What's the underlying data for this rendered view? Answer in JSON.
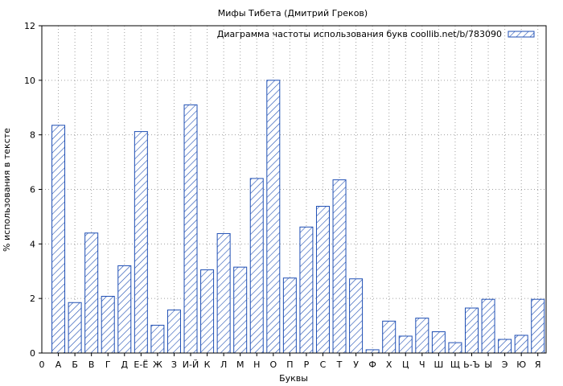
{
  "chart_data": {
    "type": "bar",
    "title": "Мифы Тибета (Дмитрий Греков)",
    "xlabel": "Буквы",
    "ylabel": "% использования в тексте",
    "ylim": [
      0,
      12
    ],
    "yticks": [
      0,
      2,
      4,
      6,
      8,
      10,
      12
    ],
    "grid": true,
    "legend_position": "top-right",
    "x_start_label": "0",
    "categories": [
      "А",
      "Б",
      "В",
      "Г",
      "Д",
      "Е-Ё",
      "Ж",
      "З",
      "И-Й",
      "К",
      "Л",
      "М",
      "Н",
      "О",
      "П",
      "Р",
      "С",
      "Т",
      "У",
      "Ф",
      "Х",
      "Ц",
      "Ч",
      "Ш",
      "Щ",
      "Ь-Ъ",
      "Ы",
      "Э",
      "Ю",
      "Я"
    ],
    "series": [
      {
        "name": "Диаграмма частоты использования букв coollib.net/b/783090",
        "color": "#1f4fb4",
        "values": [
          8.35,
          1.85,
          4.4,
          2.08,
          3.2,
          8.12,
          1.02,
          1.58,
          9.1,
          3.05,
          4.38,
          3.15,
          6.4,
          10.0,
          2.75,
          4.62,
          5.38,
          6.35,
          2.72,
          0.12,
          1.17,
          0.62,
          1.28,
          0.78,
          0.38,
          1.65,
          1.97,
          0.5,
          0.65,
          1.97
        ]
      }
    ]
  }
}
